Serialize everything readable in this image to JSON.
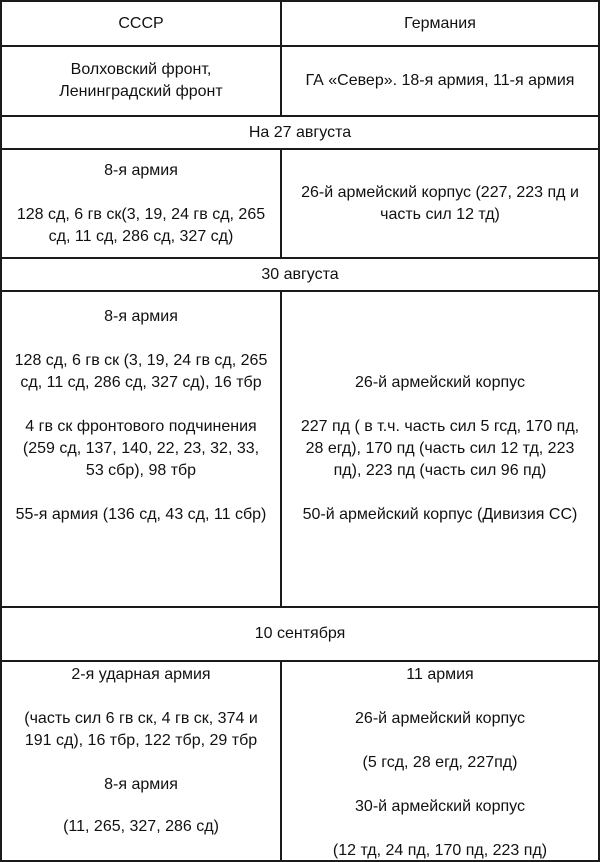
{
  "header": {
    "left": "СССР",
    "right": "Германия"
  },
  "fronts": {
    "left": "Волховский фронт, Ленинградский фронт",
    "right": "ГА «Север». 18-я армия, 11-я армия"
  },
  "sections": [
    {
      "date": "На 27 августа",
      "left": [
        "8-я армия",
        "128 сд, 6 гв ск(3, 19, 24 гв сд, 265 сд, 11 сд, 286 сд, 327 сд)"
      ],
      "right": [
        "26-й армейский корпус (227, 223 пд и часть сил 12 тд)"
      ]
    },
    {
      "date": "30 августа",
      "left": [
        "8-я армия",
        "128 сд, 6 гв ск (3, 19, 24 гв сд, 265 сд, 11 сд, 286 сд, 327 сд), 16 тбр",
        "4 гв ск фронтового подчинения (259 сд, 137, 140, 22, 23, 32, 33, 53 сбр), 98 тбр",
        "55-я армия (136 сд, 43 сд, 11 сбр)"
      ],
      "right": [
        "26-й армейский корпус",
        "227 пд ( в т.ч. часть сил 5 гсд, 170 пд, 28 егд), 170 пд (часть сил 12 тд, 223 пд), 223 пд (часть сил 96 пд)",
        "50-й армейский корпус (Дивизия СС)"
      ]
    },
    {
      "date": "10 сентября",
      "left": [
        "2-я ударная армия",
        "(часть сил 6 гв ск, 4 гв ск, 374 и 191 сд), 16 тбр, 122 тбр, 29 тбр",
        "8-я армия",
        "(11, 265, 327, 286 сд)"
      ],
      "right": [
        "11 армия",
        "26-й армейский корпус",
        "(5 гсд, 28 егд, 227пд)",
        "30-й армейский корпус",
        "(12 тд, 24 пд, 170 пд, 223 пд)"
      ]
    }
  ]
}
